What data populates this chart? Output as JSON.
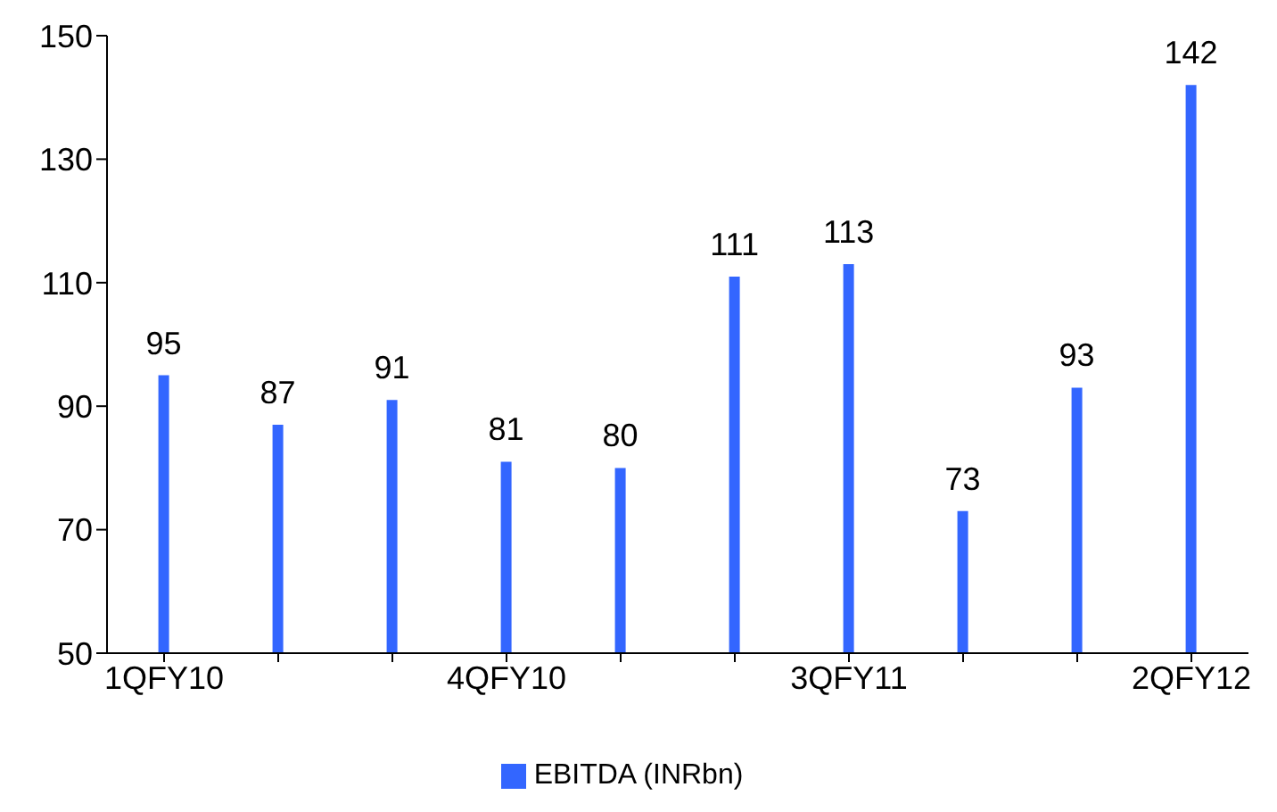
{
  "chart_data": {
    "type": "bar",
    "categories": [
      "1QFY10",
      null,
      null,
      "4QFY10",
      null,
      null,
      "3QFY11",
      null,
      null,
      "2QFY12"
    ],
    "series": [
      {
        "name": "EBITDA (INRbn)",
        "color": "#3366ff",
        "values": [
          95,
          87,
          91,
          81,
          80,
          111,
          113,
          73,
          93,
          142
        ]
      }
    ],
    "ylim": [
      50,
      150
    ],
    "yticks": [
      50,
      70,
      90,
      110,
      130,
      150
    ],
    "data_labels": true,
    "legend": "bottom"
  }
}
